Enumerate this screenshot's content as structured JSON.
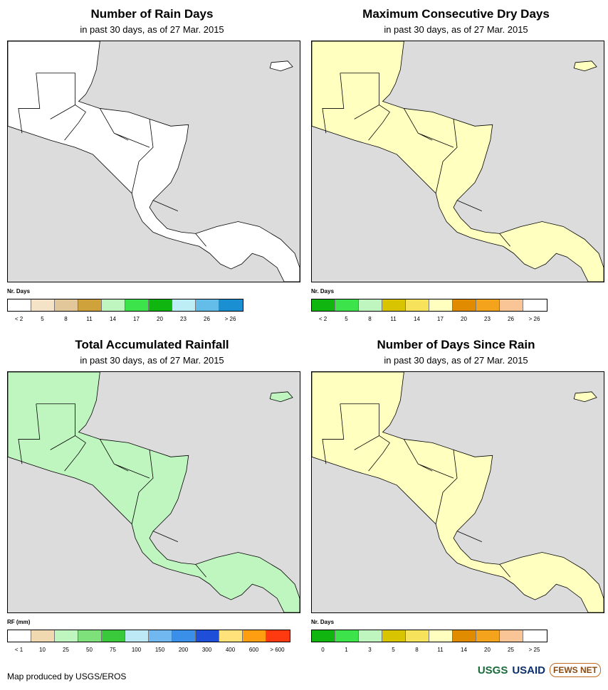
{
  "panels": [
    {
      "title": "Number of Rain Days",
      "subtitle": "in past 30 days, as of 27 Mar. 2015",
      "legend_title": "Nr. Days",
      "colors": [
        "#ffffff",
        "#f5e3c8",
        "#e1c79a",
        "#cfa23b",
        "#bff5bf",
        "#3de34a",
        "#10b60f",
        "#bdeef6",
        "#64bde8",
        "#1a8fd2"
      ],
      "labels": [
        "< 2",
        "5",
        "8",
        "11",
        "14",
        "17",
        "20",
        "23",
        "26",
        "> 26"
      ],
      "land_color": "#ffffff"
    },
    {
      "title": "Maximum Consecutive Dry Days",
      "subtitle": "in past 30 days, as of 27 Mar. 2015",
      "legend_title": "Nr. Days",
      "colors": [
        "#10b60f",
        "#3de34a",
        "#bff5bf",
        "#d8c400",
        "#f7e25c",
        "#ffffc0",
        "#e08b00",
        "#f4a41c",
        "#f9c596",
        "#ffffff"
      ],
      "labels": [
        "< 2",
        "5",
        "8",
        "11",
        "14",
        "17",
        "20",
        "23",
        "26",
        "> 26"
      ],
      "land_color": "#ffffc0"
    },
    {
      "title": "Total Accumulated Rainfall",
      "subtitle": "in past 30 days, as of 27 Mar. 2015",
      "legend_title": "RF (mm)",
      "colors": [
        "#ffffff",
        "#f0d8b0",
        "#bff5bf",
        "#7ee07a",
        "#3ac93a",
        "#bde8f6",
        "#72b8f0",
        "#3a8fe8",
        "#1f4fd8",
        "#ffe27a",
        "#ff9e10",
        "#ff3a10"
      ],
      "labels": [
        "< 1",
        "10",
        "25",
        "50",
        "75",
        "100",
        "150",
        "200",
        "300",
        "400",
        "600",
        "> 600"
      ],
      "land_color": "#bff5bf"
    },
    {
      "title": "Number of Days Since Rain",
      "subtitle": "in past 30 days, as of 27 Mar. 2015",
      "legend_title": "Nr. Days",
      "colors": [
        "#10b60f",
        "#3de34a",
        "#bff5bf",
        "#d8c400",
        "#f7e25c",
        "#ffffc0",
        "#e08b00",
        "#f4a41c",
        "#f9c596",
        "#ffffff"
      ],
      "labels": [
        "0",
        "1",
        "3",
        "5",
        "8",
        "11",
        "14",
        "20",
        "25",
        "> 25"
      ],
      "land_color": "#ffffc0"
    }
  ],
  "footer": "Map produced by USGS/EROS",
  "logos": {
    "usgs": "USGS",
    "usaid": "USAID",
    "fews": "FEWS NET"
  }
}
